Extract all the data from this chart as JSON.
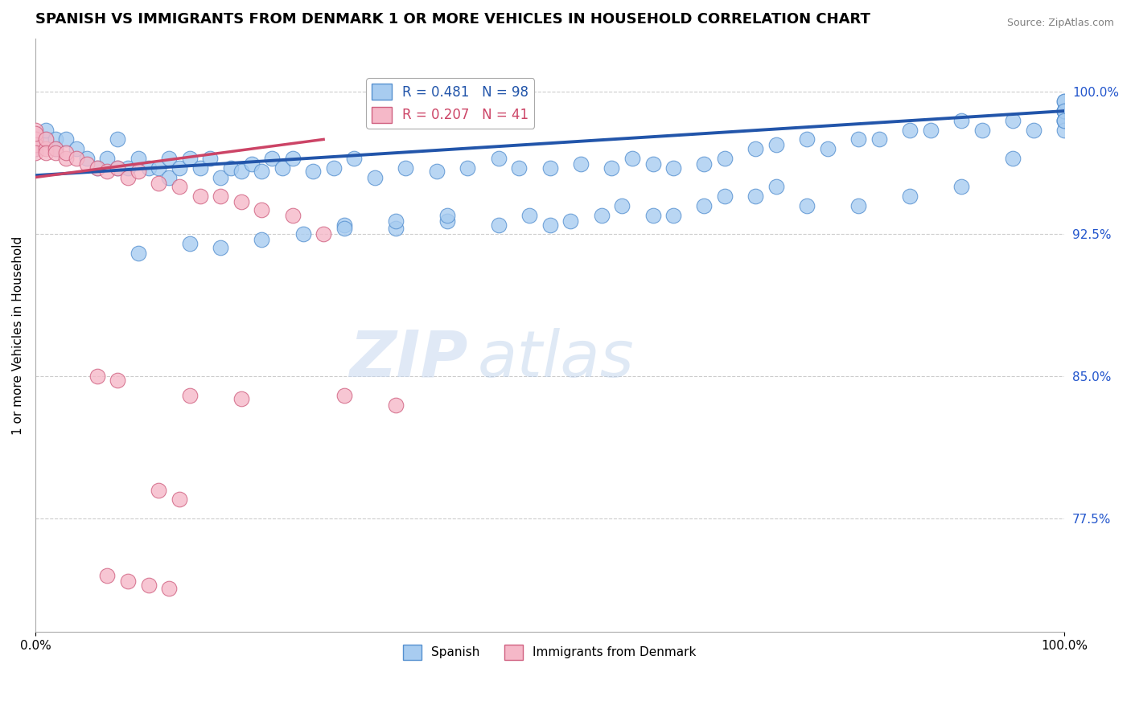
{
  "title": "SPANISH VS IMMIGRANTS FROM DENMARK 1 OR MORE VEHICLES IN HOUSEHOLD CORRELATION CHART",
  "source_text": "Source: ZipAtlas.com",
  "ylabel": "1 or more Vehicles in Household",
  "x_min": 0.0,
  "x_max": 1.0,
  "y_min": 0.715,
  "y_max": 1.028,
  "y_tick_right_labels": [
    "100.0%",
    "92.5%",
    "85.0%",
    "77.5%"
  ],
  "y_tick_right_values": [
    1.0,
    0.925,
    0.85,
    0.775
  ],
  "legend_label1": "Spanish",
  "legend_label2": "Immigrants from Denmark",
  "r1": 0.481,
  "n1": 98,
  "r2": 0.207,
  "n2": 41,
  "color_blue": "#A8CCF0",
  "color_blue_edge": "#5590D0",
  "color_blue_line": "#2255AA",
  "color_pink": "#F5B8C8",
  "color_pink_edge": "#D06080",
  "color_pink_line": "#CC4466",
  "color_grid": "#CCCCCC",
  "title_fontsize": 13,
  "axis_fontsize": 11,
  "watermark_zip": "ZIP",
  "watermark_atlas": "atlas",
  "blue_scatter_x": [
    0.0,
    0.0,
    0.01,
    0.01,
    0.02,
    0.02,
    0.03,
    0.04,
    0.05,
    0.06,
    0.07,
    0.08,
    0.08,
    0.09,
    0.1,
    0.11,
    0.12,
    0.13,
    0.13,
    0.14,
    0.15,
    0.16,
    0.17,
    0.18,
    0.19,
    0.2,
    0.21,
    0.22,
    0.23,
    0.24,
    0.25,
    0.27,
    0.29,
    0.31,
    0.33,
    0.36,
    0.39,
    0.42,
    0.45,
    0.47,
    0.5,
    0.53,
    0.56,
    0.58,
    0.6,
    0.62,
    0.65,
    0.67,
    0.7,
    0.72,
    0.75,
    0.77,
    0.8,
    0.82,
    0.85,
    0.87,
    0.9,
    0.92,
    0.95,
    0.97,
    1.0,
    1.0,
    1.0,
    1.0,
    1.0,
    1.0,
    1.0,
    1.0,
    1.0,
    1.0,
    0.5,
    0.55,
    0.6,
    0.65,
    0.7,
    0.75,
    0.8,
    0.85,
    0.9,
    0.95,
    0.3,
    0.35,
    0.4,
    0.45,
    0.48,
    0.52,
    0.57,
    0.62,
    0.67,
    0.72,
    0.15,
    0.18,
    0.22,
    0.26,
    0.3,
    0.35,
    0.4,
    0.1
  ],
  "blue_scatter_y": [
    0.97,
    0.975,
    0.975,
    0.98,
    0.97,
    0.975,
    0.975,
    0.97,
    0.965,
    0.96,
    0.965,
    0.96,
    0.975,
    0.96,
    0.965,
    0.96,
    0.96,
    0.955,
    0.965,
    0.96,
    0.965,
    0.96,
    0.965,
    0.955,
    0.96,
    0.958,
    0.962,
    0.958,
    0.965,
    0.96,
    0.965,
    0.958,
    0.96,
    0.965,
    0.955,
    0.96,
    0.958,
    0.96,
    0.965,
    0.96,
    0.96,
    0.962,
    0.96,
    0.965,
    0.962,
    0.96,
    0.962,
    0.965,
    0.97,
    0.972,
    0.975,
    0.97,
    0.975,
    0.975,
    0.98,
    0.98,
    0.985,
    0.98,
    0.985,
    0.98,
    0.985,
    0.99,
    0.995,
    0.99,
    0.985,
    0.98,
    0.99,
    0.995,
    0.99,
    0.985,
    0.93,
    0.935,
    0.935,
    0.94,
    0.945,
    0.94,
    0.94,
    0.945,
    0.95,
    0.965,
    0.93,
    0.928,
    0.932,
    0.93,
    0.935,
    0.932,
    0.94,
    0.935,
    0.945,
    0.95,
    0.92,
    0.918,
    0.922,
    0.925,
    0.928,
    0.932,
    0.935,
    0.915
  ],
  "pink_scatter_x": [
    0.0,
    0.0,
    0.0,
    0.0,
    0.0,
    0.0,
    0.0,
    0.01,
    0.01,
    0.01,
    0.02,
    0.02,
    0.03,
    0.03,
    0.04,
    0.05,
    0.06,
    0.07,
    0.08,
    0.09,
    0.1,
    0.12,
    0.14,
    0.16,
    0.18,
    0.2,
    0.22,
    0.25,
    0.28,
    0.06,
    0.08,
    0.15,
    0.2,
    0.3,
    0.35,
    0.12,
    0.14,
    0.07,
    0.09,
    0.11,
    0.13
  ],
  "pink_scatter_y": [
    0.975,
    0.98,
    0.97,
    0.975,
    0.972,
    0.978,
    0.968,
    0.97,
    0.975,
    0.968,
    0.97,
    0.968,
    0.965,
    0.968,
    0.965,
    0.962,
    0.96,
    0.958,
    0.96,
    0.955,
    0.958,
    0.952,
    0.95,
    0.945,
    0.945,
    0.942,
    0.938,
    0.935,
    0.925,
    0.85,
    0.848,
    0.84,
    0.838,
    0.84,
    0.835,
    0.79,
    0.785,
    0.745,
    0.742,
    0.74,
    0.738
  ]
}
